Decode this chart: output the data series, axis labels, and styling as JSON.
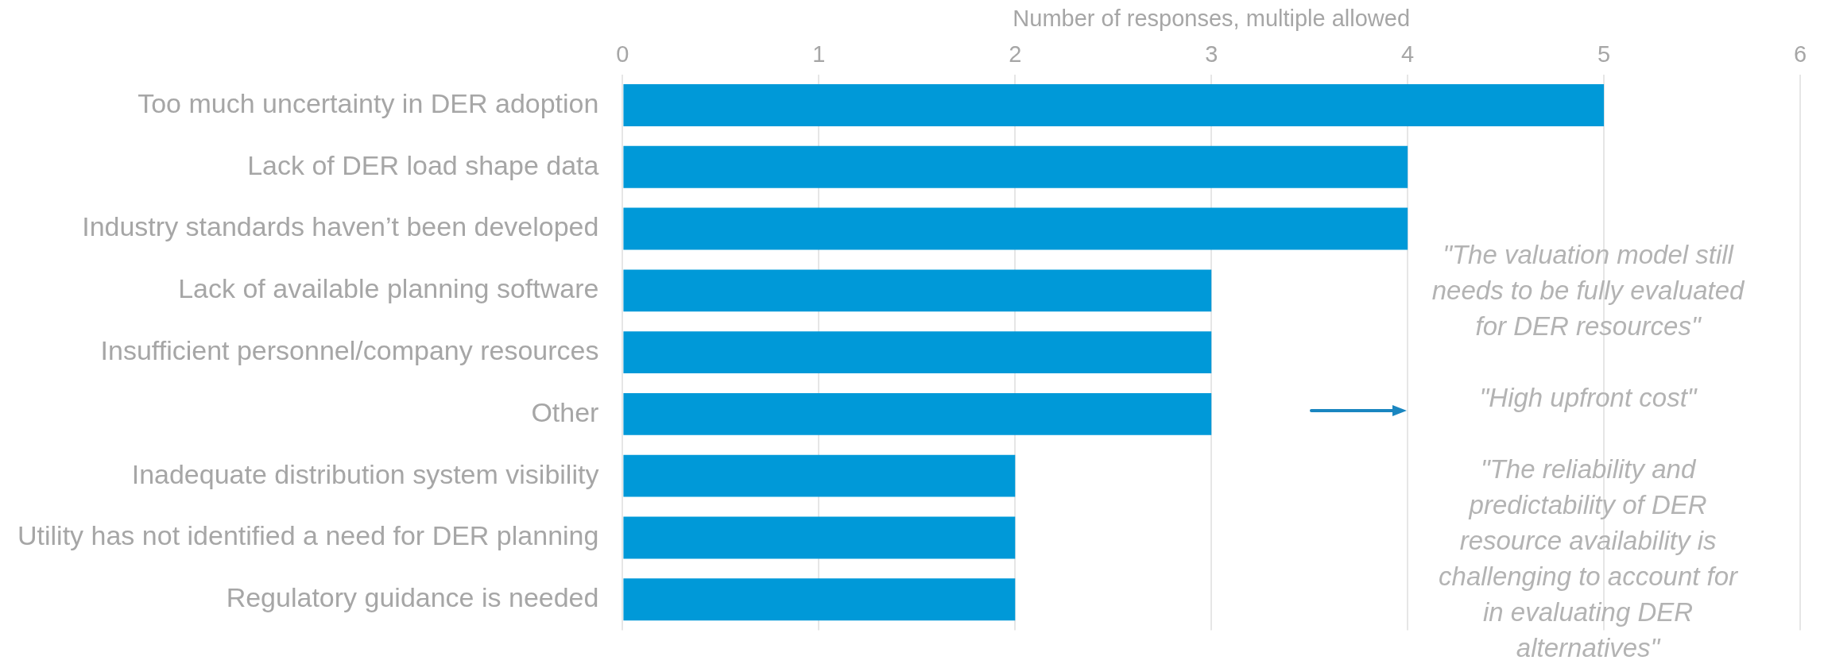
{
  "chart_data": {
    "type": "bar",
    "orientation": "horizontal",
    "xlabel": "Number of responses, multiple allowed",
    "categories": [
      "Too much uncertainty in DER adoption",
      "Lack of DER load shape data",
      "Industry standards haven’t been developed",
      "Lack of available planning software",
      "Insufficient personnel/company resources",
      "Other",
      "Inadequate distribution system visibility",
      "Utility has not identified a need for DER planning",
      "Regulatory guidance is needed"
    ],
    "values": [
      5,
      4,
      4,
      3,
      3,
      3,
      2,
      2,
      2
    ],
    "color": "#0099d8",
    "xlim": [
      0,
      6
    ],
    "xticks": [
      0,
      1,
      2,
      3,
      4,
      5,
      6
    ],
    "grid": "x",
    "annotations": [
      "\"The valuation model still needs to be fully evaluated for DER resources\"",
      "\"High upfront cost\"",
      "\"The reliability and predictability of DER resource availability is challenging to account for in evaluating DER alternatives\""
    ]
  }
}
